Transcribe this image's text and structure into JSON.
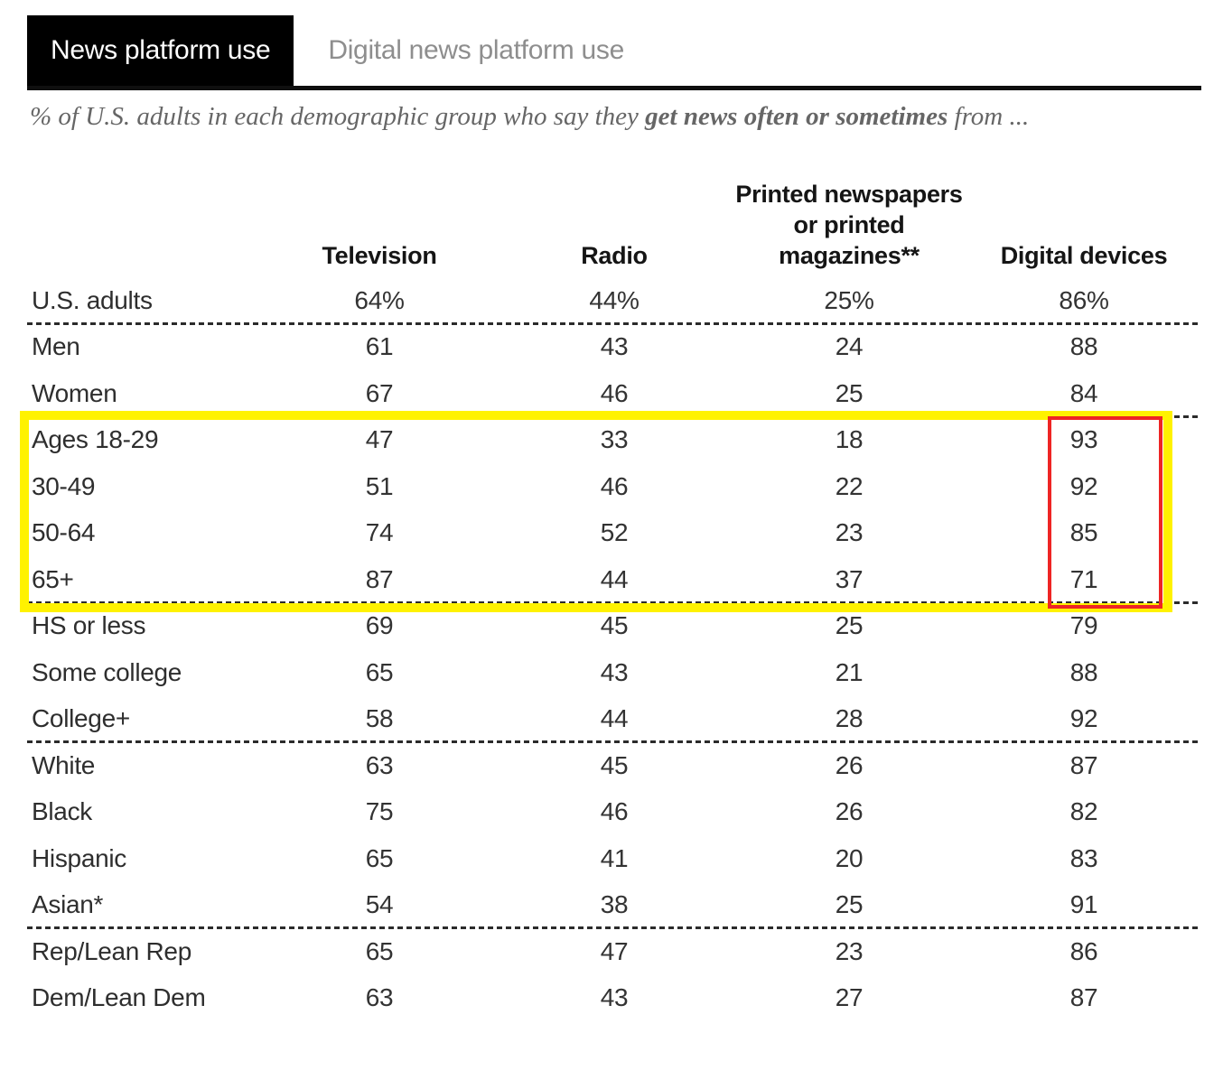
{
  "tabs": [
    {
      "label": "News platform use",
      "active": true
    },
    {
      "label": "Digital news platform use",
      "active": false
    }
  ],
  "subtitle": {
    "prefix": "% of U.S. adults in each demographic group who say they ",
    "bold": "get news often or sometimes",
    "suffix": " from ..."
  },
  "chart_data": {
    "type": "table",
    "title": "News platform use",
    "subtitle_full": "% of U.S. adults in each demographic group who say they get news often or sometimes from ...",
    "columns": [
      {
        "name": "Television",
        "lines": [
          "Television"
        ]
      },
      {
        "name": "Radio",
        "lines": [
          "Radio"
        ]
      },
      {
        "name": "Printed newspapers or printed magazines**",
        "lines": [
          "Printed newspapers",
          "or printed",
          "magazines**"
        ]
      },
      {
        "name": "Digital devices",
        "lines": [
          "Digital devices"
        ]
      }
    ],
    "rows": [
      {
        "label": "U.S. adults",
        "values": [
          "64%",
          "44%",
          "25%",
          "86%"
        ],
        "separator_after": true,
        "in_yellow_box": false
      },
      {
        "label": "Men",
        "values": [
          "61",
          "43",
          "24",
          "88"
        ],
        "separator_after": false,
        "in_yellow_box": false
      },
      {
        "label": "Women",
        "values": [
          "67",
          "46",
          "25",
          "84"
        ],
        "separator_after": true,
        "in_yellow_box": false
      },
      {
        "label": "Ages 18-29",
        "values": [
          "47",
          "33",
          "18",
          "93"
        ],
        "separator_after": false,
        "in_yellow_box": true
      },
      {
        "label": "30-49",
        "values": [
          "51",
          "46",
          "22",
          "92"
        ],
        "separator_after": false,
        "in_yellow_box": true
      },
      {
        "label": "50-64",
        "values": [
          "74",
          "52",
          "23",
          "85"
        ],
        "separator_after": false,
        "in_yellow_box": true
      },
      {
        "label": "65+",
        "values": [
          "87",
          "44",
          "37",
          "71"
        ],
        "separator_after": true,
        "in_yellow_box": true
      },
      {
        "label": "HS or less",
        "values": [
          "69",
          "45",
          "25",
          "79"
        ],
        "separator_after": false,
        "in_yellow_box": false
      },
      {
        "label": "Some college",
        "values": [
          "65",
          "43",
          "21",
          "88"
        ],
        "separator_after": false,
        "in_yellow_box": false
      },
      {
        "label": "College+",
        "values": [
          "58",
          "44",
          "28",
          "92"
        ],
        "separator_after": true,
        "in_yellow_box": false
      },
      {
        "label": "White",
        "values": [
          "63",
          "45",
          "26",
          "87"
        ],
        "separator_after": false,
        "in_yellow_box": false
      },
      {
        "label": "Black",
        "values": [
          "75",
          "46",
          "26",
          "82"
        ],
        "separator_after": false,
        "in_yellow_box": false
      },
      {
        "label": "Hispanic",
        "values": [
          "65",
          "41",
          "20",
          "83"
        ],
        "separator_after": false,
        "in_yellow_box": false
      },
      {
        "label": "Asian*",
        "values": [
          "54",
          "38",
          "25",
          "91"
        ],
        "separator_after": true,
        "in_yellow_box": false
      },
      {
        "label": "Rep/Lean Rep",
        "values": [
          "65",
          "47",
          "23",
          "86"
        ],
        "separator_after": false,
        "in_yellow_box": false
      },
      {
        "label": "Dem/Lean Dem",
        "values": [
          "63",
          "43",
          "27",
          "87"
        ],
        "separator_after": false,
        "in_yellow_box": false
      }
    ],
    "annotations": {
      "yellow_box": "Highlights rows Ages 18-29 through 65+",
      "red_box": "Highlights Digital devices values 93, 92, 85, 71 for the age rows"
    }
  },
  "colors": {
    "yellow_highlight": "#fff200",
    "red_highlight": "#ee2524",
    "tab_active_bg": "#000000",
    "tab_active_text": "#ffffff",
    "tab_inactive_text": "#8e8e8e",
    "body_text": "#333333",
    "subtitle_text": "#666666"
  }
}
